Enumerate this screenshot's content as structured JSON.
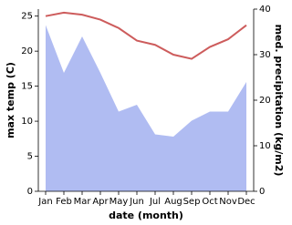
{
  "chart_data": {
    "type": "line-area",
    "x_label": "date (month)",
    "y_label": "max temp (C)",
    "y2_label": "med. precipitation (kg/m2)",
    "categories": [
      "Jan",
      "Feb",
      "Mar",
      "Apr",
      "May",
      "Jun",
      "Jul",
      "Aug",
      "Sep",
      "Oct",
      "Nov",
      "Dec"
    ],
    "series": [
      {
        "name": "max temp",
        "type": "line",
        "color": "#cd5c5c",
        "values": [
          25,
          25.5,
          25.2,
          24.5,
          23.3,
          21.5,
          20.9,
          19.5,
          18.9,
          20.6,
          21.7,
          23.7
        ]
      },
      {
        "name": "med. precipitation",
        "type": "area",
        "axis": "y2",
        "color": "#b0bcf2",
        "values": [
          36.5,
          26,
          34,
          26,
          17.5,
          19,
          12.5,
          12,
          15.5,
          17.5,
          17.5,
          24
        ]
      }
    ],
    "ylim": [
      0,
      26
    ],
    "yticks": [
      0,
      5,
      10,
      15,
      20,
      25
    ],
    "y2lim": [
      0,
      40
    ],
    "y2ticks": [
      0,
      10,
      20,
      30,
      40
    ]
  }
}
